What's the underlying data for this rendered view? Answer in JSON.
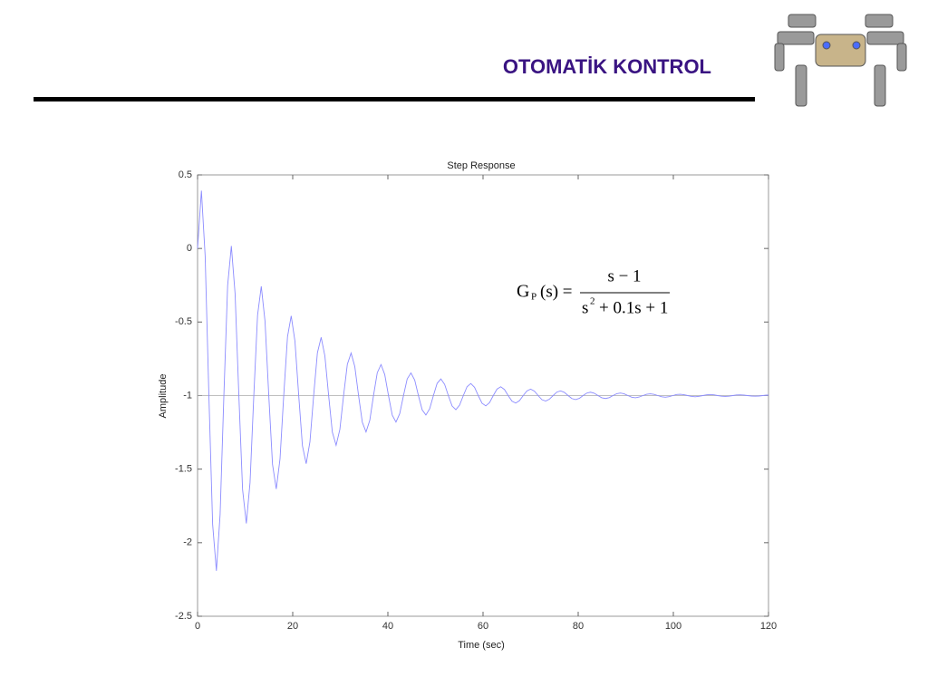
{
  "header": {
    "title": "OTOMATİK KONTROL"
  },
  "chart_data": {
    "type": "line",
    "title": "Step Response",
    "x_label": "Time (sec)",
    "y_label": "Amplitude",
    "xlim": [
      0,
      120
    ],
    "xticks": [
      0,
      20,
      40,
      60,
      80,
      100,
      120
    ],
    "ylim": [
      -2.5,
      0.5
    ],
    "yticks": [
      -2.5,
      -2,
      -1.5,
      -1,
      -0.5,
      0,
      0.5
    ],
    "grid": false,
    "reference_line": -1,
    "annotation": {
      "lhs": "G",
      "subscript": "P",
      "args": "(s) =",
      "numerator": "s − 1",
      "denominator_base": "s",
      "denominator_power": "2",
      "denominator_rest": "+ 0.1s + 1"
    },
    "x": [
      0,
      0.81,
      1.6,
      2.38,
      3.17,
      3.96,
      4.74,
      5.53,
      6.32,
      7.1,
      7.89,
      8.68,
      9.46,
      10.25,
      11.03,
      11.82,
      12.61,
      13.39,
      14.18,
      14.97,
      15.75,
      16.54,
      17.33,
      18.11,
      18.9,
      19.68,
      20.47,
      21.26,
      22.04,
      22.83,
      23.62,
      24.4,
      25.19,
      25.98,
      26.76,
      27.55,
      28.33,
      29.12,
      29.91,
      30.69,
      31.48,
      32.27,
      33.05,
      33.84,
      34.63,
      35.41,
      36.2,
      36.98,
      37.77,
      38.56,
      39.34,
      40.13,
      40.92,
      41.7,
      42.49,
      43.28,
      44.06,
      44.85,
      45.64,
      46.42,
      47.21,
      47.99,
      48.78,
      49.57,
      50.35,
      51.14,
      51.93,
      52.71,
      53.5,
      54.29,
      55.07,
      55.86,
      56.64,
      57.43,
      58.22,
      59.0,
      59.79,
      60.58,
      61.36,
      62.15,
      62.94,
      63.72,
      64.51,
      65.29,
      66.08,
      66.87,
      67.65,
      68.44,
      69.23,
      70.01,
      70.8,
      71.59,
      72.37,
      73.16,
      73.94,
      74.73,
      75.52,
      76.3,
      77.09,
      77.88,
      78.66,
      79.45,
      80.24,
      81.02,
      81.81,
      82.59,
      83.38,
      84.17,
      84.95,
      85.74,
      86.53,
      87.31,
      88.1,
      88.89,
      89.67,
      90.46,
      91.25,
      92.03,
      92.82,
      93.6,
      94.39,
      95.18,
      95.96,
      96.75,
      97.54,
      98.32,
      99.11,
      99.9,
      100.68,
      101.47,
      102.25,
      103.04,
      103.83,
      104.61,
      105.4,
      106.19,
      106.97,
      107.76,
      108.55,
      109.33,
      110.12,
      110.9,
      111.69,
      112.48,
      113.26,
      114.05,
      114.84,
      115.62,
      116.41,
      117.2,
      117.98,
      118.77,
      119.55,
      120
    ],
    "series": [
      {
        "color": "#8c8cff",
        "values": [
          0,
          0.393,
          -0.053,
          -1,
          -1.876,
          -2.191,
          -1.809,
          -1,
          -0.252,
          0.017,
          -0.308,
          -1,
          -1.639,
          -1.869,
          -1.591,
          -1,
          -0.454,
          -0.257,
          -0.495,
          -1,
          -1.467,
          -1.635,
          -1.431,
          -1,
          -0.601,
          -0.458,
          -0.631,
          -1,
          -1.341,
          -1.463,
          -1.315,
          -1,
          -0.709,
          -0.604,
          -0.731,
          -1,
          -1.249,
          -1.338,
          -1.23,
          -1,
          -0.787,
          -0.711,
          -0.803,
          -1,
          -1.182,
          -1.247,
          -1.168,
          -1,
          -0.845,
          -0.789,
          -0.857,
          -1,
          -1.133,
          -1.18,
          -1.123,
          -1,
          -0.887,
          -0.846,
          -0.895,
          -1,
          -1.097,
          -1.132,
          -1.09,
          -1,
          -0.917,
          -0.887,
          -0.924,
          -1,
          -1.071,
          -1.096,
          -1.065,
          -1,
          -0.94,
          -0.918,
          -0.944,
          -1,
          -1.052,
          -1.07,
          -1.048,
          -1,
          -0.956,
          -0.94,
          -0.959,
          -1,
          -1.038,
          -1.051,
          -1.035,
          -1,
          -0.968,
          -0.956,
          -0.97,
          -1,
          -1.028,
          -1.037,
          -1.025,
          -1,
          -0.976,
          -0.968,
          -0.978,
          -1,
          -1.02,
          -1.027,
          -1.019,
          -1,
          -0.983,
          -0.977,
          -0.984,
          -1,
          -1.015,
          -1.02,
          -1.014,
          -1,
          -0.987,
          -0.983,
          -0.988,
          -1,
          -1.011,
          -1.015,
          -1.01,
          -1,
          -0.991,
          -0.988,
          -0.992,
          -1,
          -1.008,
          -1.011,
          -1.007,
          -1,
          -0.993,
          -0.991,
          -0.994,
          -1,
          -1.006,
          -1.008,
          -1.005,
          -1,
          -0.995,
          -0.993,
          -0.995,
          -1,
          -1.004,
          -1.006,
          -1.004,
          -1,
          -0.996,
          -0.995,
          -0.997,
          -1,
          -1.003,
          -1.004,
          -1.003,
          -1,
          -0.997,
          -0.997
        ]
      }
    ]
  }
}
